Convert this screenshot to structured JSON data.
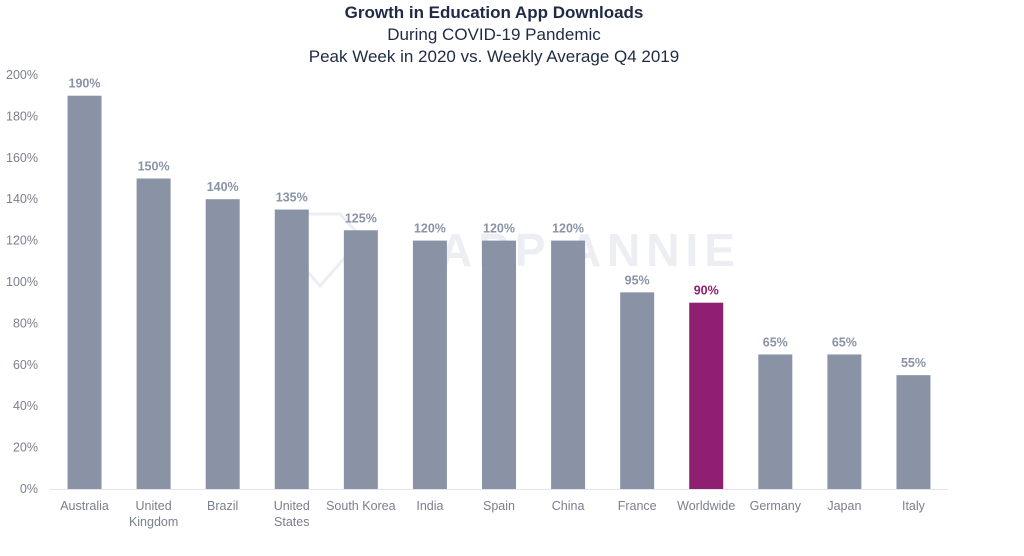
{
  "title": "Growth in Education App Downloads",
  "subtitle1": "During COVID-19 Pandemic",
  "subtitle2": "Peak Week in 2020 vs. Weekly Average Q4 2019",
  "watermark": "APP ANNIE",
  "colors": {
    "bar": "#8a93a6",
    "highlight": "#8e1f71",
    "label": "#8a93a6",
    "grid": "#e3e5ea"
  },
  "chart_data": {
    "type": "bar",
    "title": "Growth in Education App Downloads",
    "subtitle": "During COVID-19 Pandemic / Peak Week in 2020 vs. Weekly Average Q4 2019",
    "categories": [
      "Australia",
      "United Kingdom",
      "Brazil",
      "United States",
      "South Korea",
      "India",
      "Spain",
      "China",
      "France",
      "Worldwide",
      "Germany",
      "Japan",
      "Italy"
    ],
    "category_lines": [
      [
        "Australia"
      ],
      [
        "United",
        "Kingdom"
      ],
      [
        "Brazil"
      ],
      [
        "United",
        "States"
      ],
      [
        "South Korea"
      ],
      [
        "India"
      ],
      [
        "Spain"
      ],
      [
        "China"
      ],
      [
        "France"
      ],
      [
        "Worldwide"
      ],
      [
        "Germany"
      ],
      [
        "Japan"
      ],
      [
        "Italy"
      ]
    ],
    "values": [
      190,
      150,
      140,
      135,
      125,
      120,
      120,
      120,
      95,
      90,
      65,
      65,
      55
    ],
    "data_labels": [
      "190%",
      "150%",
      "140%",
      "135%",
      "125%",
      "120%",
      "120%",
      "120%",
      "95%",
      "90%",
      "65%",
      "65%",
      "55%"
    ],
    "highlight_index": 9,
    "ylim": [
      0,
      200
    ],
    "yticks": [
      0,
      20,
      40,
      60,
      80,
      100,
      120,
      140,
      160,
      180,
      200
    ],
    "ytick_labels": [
      "0%",
      "20%",
      "40%",
      "60%",
      "80%",
      "100%",
      "120%",
      "140%",
      "160%",
      "180%",
      "200%"
    ],
    "xlabel": "",
    "ylabel": "",
    "grid": false,
    "legend": "none"
  }
}
